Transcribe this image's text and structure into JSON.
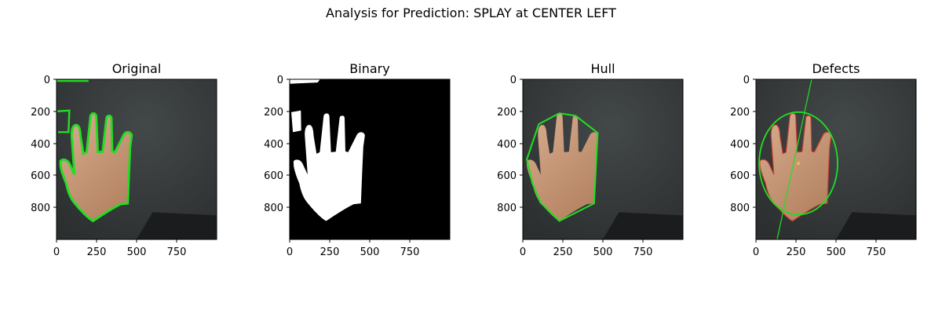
{
  "figure": {
    "title": "Analysis for Prediction: SPLAY at CENTER LEFT"
  },
  "panels": [
    {
      "id": "original",
      "title": "Original",
      "image": "hand-photo-with-green-contour",
      "xticks": [
        "0",
        "250",
        "500",
        "750"
      ],
      "yticks": [
        "0",
        "200",
        "400",
        "600",
        "800"
      ]
    },
    {
      "id": "binary",
      "title": "Binary",
      "image": "binary-hand-mask",
      "xticks": [
        "0",
        "250",
        "500",
        "750"
      ],
      "yticks": [
        "0",
        "200",
        "400",
        "600",
        "800"
      ]
    },
    {
      "id": "hull",
      "title": "Hull",
      "image": "hand-photo-with-convex-hull",
      "xticks": [
        "0",
        "250",
        "500",
        "750"
      ],
      "yticks": [
        "0",
        "200",
        "400",
        "600",
        "800"
      ]
    },
    {
      "id": "defects",
      "title": "Defects",
      "image": "hand-photo-with-fitted-ellipse-and-axis",
      "xticks": [
        "0",
        "250",
        "500",
        "750"
      ],
      "yticks": [
        "0",
        "200",
        "400",
        "600",
        "800"
      ]
    }
  ],
  "colors": {
    "contour": "#22dd22",
    "background_dark": "#35393a",
    "skin": "#c99a7a",
    "mask_fg": "#ffffff",
    "mask_bg": "#000000"
  }
}
